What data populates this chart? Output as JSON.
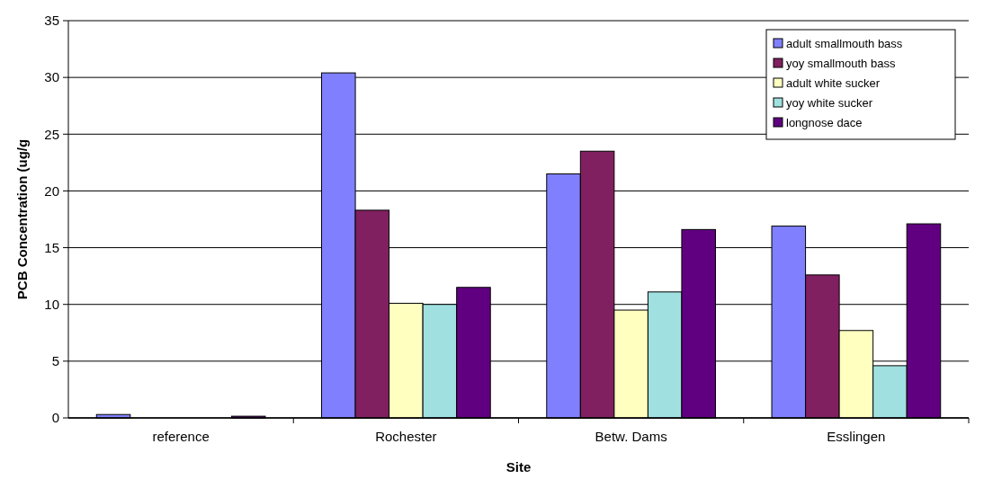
{
  "chart_data": {
    "type": "bar",
    "xlabel": "Site",
    "ylabel": "PCB Concentration (ug/g",
    "categories": [
      "reference",
      "Rochester",
      "Betw. Dams",
      "Esslingen"
    ],
    "series": [
      {
        "name": "adult smallmouth bass",
        "color": "#8080ff",
        "values": [
          0.3,
          30.4,
          21.5,
          16.9
        ]
      },
      {
        "name": "yoy smallmouth bass",
        "color": "#802060",
        "values": [
          null,
          18.3,
          23.5,
          12.6
        ]
      },
      {
        "name": "adult white sucker",
        "color": "#ffffc0",
        "values": [
          null,
          10.1,
          9.5,
          7.7
        ]
      },
      {
        "name": "yoy white sucker",
        "color": "#a0e0e0",
        "values": [
          null,
          10.0,
          11.1,
          4.6
        ]
      },
      {
        "name": "longnose dace",
        "color": "#600080",
        "values": [
          0.15,
          11.5,
          16.6,
          17.1
        ]
      }
    ],
    "ylim": [
      0,
      35
    ],
    "yticks": [
      0,
      5,
      10,
      15,
      20,
      25,
      30,
      35
    ],
    "grid": "y",
    "legend": "top right"
  }
}
